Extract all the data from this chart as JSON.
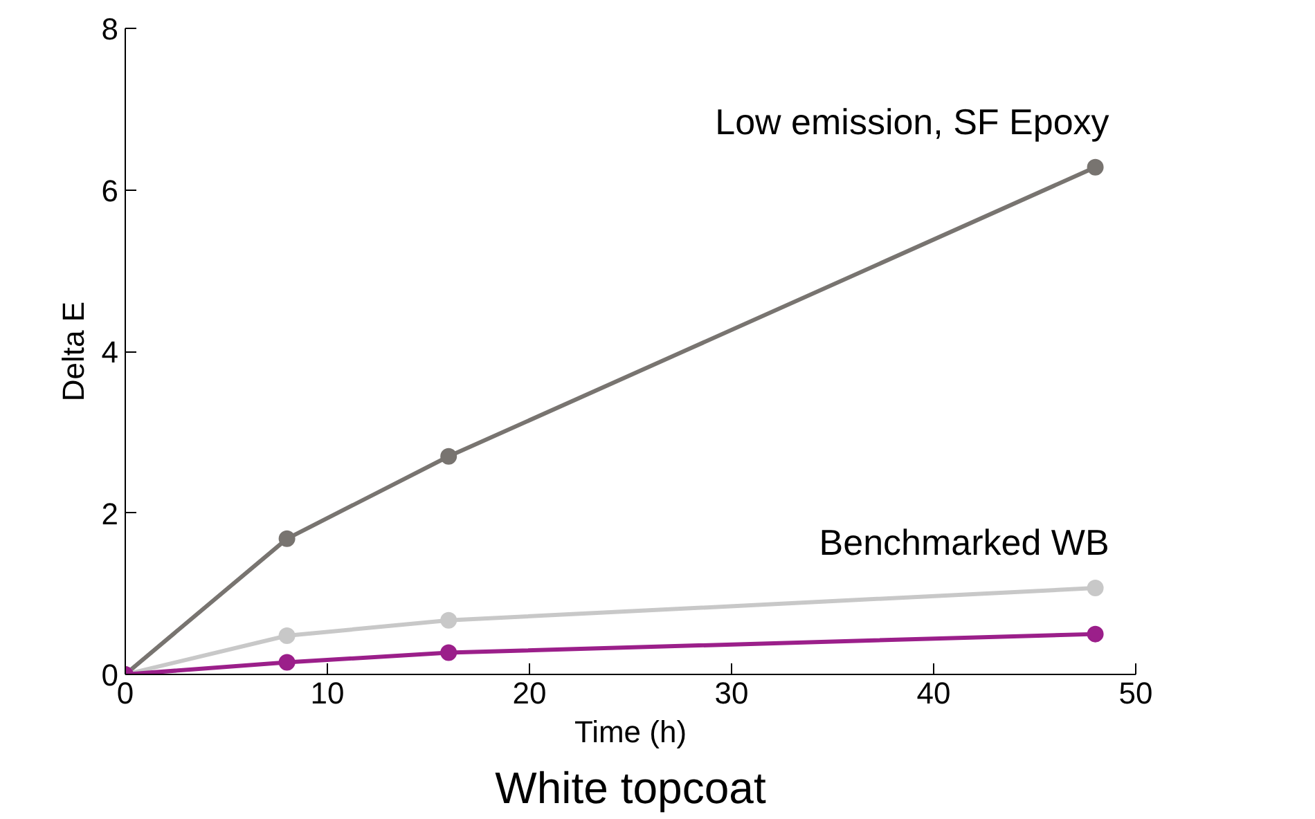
{
  "chart_data": {
    "type": "line",
    "title": "White topcoat",
    "xlabel": "Time (h)",
    "ylabel": "Delta E",
    "x": [
      0,
      8,
      16,
      48
    ],
    "series": [
      {
        "name": "Low emission, SF Epoxy",
        "color": "#787470",
        "values": [
          0,
          1.68,
          2.7,
          6.28
        ]
      },
      {
        "name": "Benchmarked WB",
        "color": "#c8c8c8",
        "values": [
          0,
          0.48,
          0.67,
          1.07
        ]
      },
      {
        "color": "#9b1f8a",
        "values": [
          0,
          0.15,
          0.27,
          0.5
        ]
      }
    ],
    "xlim": [
      0,
      50
    ],
    "xticks": [
      0,
      10,
      20,
      30,
      40,
      50
    ],
    "ylim": [
      0,
      8
    ],
    "yticks": [
      0,
      2,
      4,
      6,
      8
    ],
    "grid": false,
    "marker": "circle",
    "line_style": "solid"
  }
}
